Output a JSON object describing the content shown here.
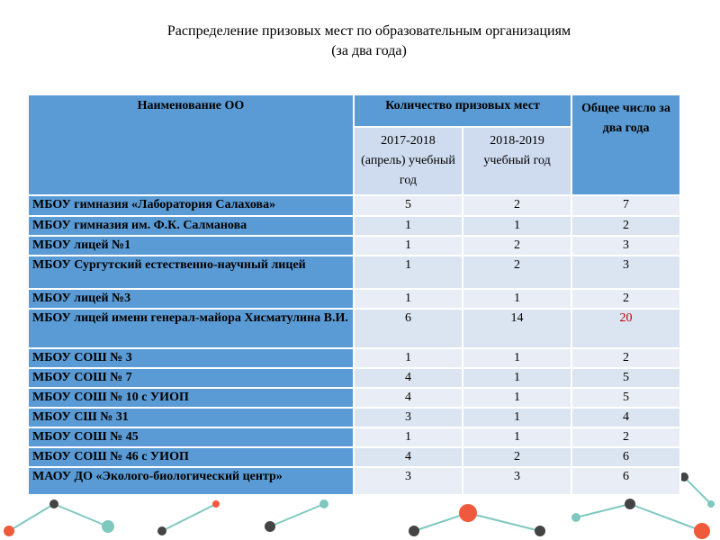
{
  "title": "Распределение призовых мест по образовательным организациям",
  "subtitle": "(за два года)",
  "table": {
    "header": {
      "name": "Наименование ОО",
      "places": "Количество призовых мест",
      "total": "Общее число за два года",
      "years": [
        "2017-2018 (апрель) учебный год",
        "2018-2019 учебный год"
      ]
    },
    "rows": [
      [
        "МБОУ гимназия «Лаборатория Салахова»",
        5,
        2,
        7
      ],
      [
        "МБОУ гимназия им. Ф.К. Салманова",
        1,
        1,
        2
      ],
      [
        "МБОУ лицей №1",
        1,
        2,
        3
      ],
      [
        "МБОУ Сургутский естественно-научный лицей",
        1,
        2,
        3
      ],
      [
        "МБОУ лицей №3",
        1,
        1,
        2
      ],
      [
        "МБОУ лицей имени генерал-майора Хисматулина В.И.",
        6,
        14,
        20
      ],
      [
        "МБОУ СОШ № 3",
        1,
        1,
        2
      ],
      [
        "МБОУ СОШ № 7",
        4,
        1,
        5
      ],
      [
        "МБОУ СОШ № 10 с УИОП",
        4,
        1,
        5
      ],
      [
        "МБОУ СШ № 31",
        3,
        1,
        4
      ],
      [
        "МБОУ СОШ № 45",
        1,
        1,
        2
      ],
      [
        "МБОУ СОШ № 46 с УИОП",
        4,
        2,
        6
      ],
      [
        "МАОУ ДО «Эколого-биологический центр»",
        3,
        3,
        6
      ]
    ],
    "highlight": {
      "row": 5,
      "col": 3,
      "color": "#c00000"
    }
  }
}
